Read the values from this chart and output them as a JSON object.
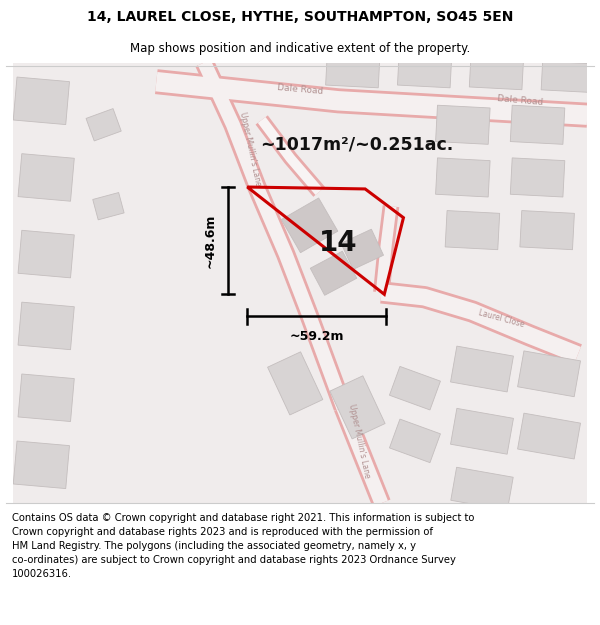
{
  "title": "14, LAUREL CLOSE, HYTHE, SOUTHAMPTON, SO45 5EN",
  "subtitle": "Map shows position and indicative extent of the property.",
  "footer": "Contains OS data © Crown copyright and database right 2021. This information is subject to\nCrown copyright and database rights 2023 and is reproduced with the permission of\nHM Land Registry. The polygons (including the associated geometry, namely x, y\nco-ordinates) are subject to Crown copyright and database rights 2023 Ordnance Survey\n100026316.",
  "area_label": "~1017m²/~0.251ac.",
  "width_label": "~59.2m",
  "height_label": "~48.6m",
  "plot_number": "14",
  "map_bg": "#f5f2f2",
  "polygon_color": "#cc0000",
  "building_fill": "#d8d4d4",
  "building_edge": "#c4bebe",
  "road_outline": "#e8aaaa",
  "road_fill": "#f5f0f0",
  "road_label_color": "#b09090",
  "title_fontsize": 10,
  "subtitle_fontsize": 8.5,
  "footer_fontsize": 7.2
}
